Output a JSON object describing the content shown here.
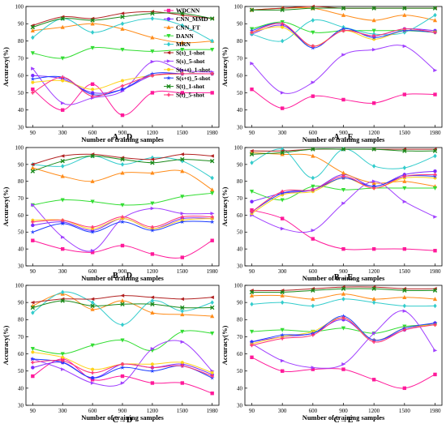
{
  "figure": {
    "x_values": [
      90,
      300,
      600,
      900,
      1200,
      1500,
      1980
    ],
    "series_meta": [
      {
        "name": "WDCNN",
        "color": "#ff1a9a",
        "marker": "square"
      },
      {
        "name": "CNN_MMD",
        "color": "#7b2cff",
        "marker": "circle"
      },
      {
        "name": "CNN_FT",
        "color": "#ff8c1a",
        "marker": "triangle"
      },
      {
        "name": "DANN",
        "color": "#33dd33",
        "marker": "tri-down"
      },
      {
        "name": "MRN",
        "color": "#33cccc",
        "marker": "diamond"
      },
      {
        "name": "S(s)_1-shot",
        "color": "#b22222",
        "marker": "tri-left"
      },
      {
        "name": "S(s)_5-shot",
        "color": "#a040ff",
        "marker": "tri-right"
      },
      {
        "name": "S(s+t)_1-shot",
        "color": "#ffd21a",
        "marker": "hex"
      },
      {
        "name": "S(s+t)_5-shot",
        "color": "#1a3bff",
        "marker": "star"
      },
      {
        "name": "S(t)_1-shot",
        "color": "#1a8a1a",
        "marker": "cross"
      },
      {
        "name": "S(t)_5-shot",
        "color": "#ff3377",
        "marker": "plus"
      }
    ]
  },
  "chart_data": [
    {
      "type": "line",
      "caption": "A→D",
      "xlabel": "Number of training samples",
      "ylabel": "Accuracy(%)",
      "ylim": [
        30,
        100
      ],
      "yticks": [
        30,
        40,
        50,
        60,
        70,
        80,
        90,
        100
      ],
      "show_legend": true,
      "x": [
        90,
        300,
        600,
        900,
        1200,
        1500,
        1980
      ],
      "series": [
        {
          "name": "WDCNN",
          "values": [
            52,
            40,
            55,
            37,
            50,
            50,
            50
          ]
        },
        {
          "name": "CNN_MMD",
          "values": [
            60,
            58,
            50,
            52,
            60,
            61,
            61
          ]
        },
        {
          "name": "CNN_FT",
          "values": [
            86,
            88,
            90,
            87,
            82,
            79,
            80
          ]
        },
        {
          "name": "DANN",
          "values": [
            73,
            70,
            76,
            75,
            74,
            75,
            75
          ]
        },
        {
          "name": "MRN",
          "values": [
            82,
            93,
            85,
            90,
            93,
            89,
            80
          ]
        },
        {
          "name": "S(s)_1-shot",
          "values": [
            89,
            94,
            93,
            96,
            97,
            95,
            93
          ]
        },
        {
          "name": "S(s)_5-shot",
          "values": [
            64,
            44,
            47,
            51,
            68,
            63,
            62
          ]
        },
        {
          "name": "S(s+t)_1-shot",
          "values": [
            56,
            57,
            52,
            57,
            60,
            61,
            61
          ]
        },
        {
          "name": "S(s+t)_5-shot",
          "values": [
            58,
            59,
            49,
            52,
            61,
            61,
            61
          ]
        },
        {
          "name": "S(t)_1-shot",
          "values": [
            88,
            93,
            92,
            94,
            96,
            96,
            93
          ]
        },
        {
          "name": "S(t)_5-shot",
          "values": [
            50,
            59,
            48,
            54,
            60,
            61,
            61
          ]
        }
      ]
    },
    {
      "type": "line",
      "caption": "A→E",
      "xlabel": "Number of training samples",
      "ylabel": "Accuracy(%)",
      "ylim": [
        30,
        100
      ],
      "yticks": [
        30,
        40,
        50,
        60,
        70,
        80,
        90,
        100
      ],
      "show_legend": false,
      "x": [
        90,
        300,
        600,
        900,
        1200,
        1500,
        1980
      ],
      "series": [
        {
          "name": "WDCNN",
          "values": [
            52,
            41,
            48,
            46,
            44,
            49,
            49
          ]
        },
        {
          "name": "CNN_MMD",
          "values": [
            84,
            89,
            77,
            86,
            83,
            87,
            86
          ]
        },
        {
          "name": "CNN_FT",
          "values": [
            98,
            99,
            99,
            95,
            92,
            95,
            92
          ]
        },
        {
          "name": "DANN",
          "values": [
            87,
            91,
            85,
            86,
            86,
            86,
            85
          ]
        },
        {
          "name": "MRN",
          "values": [
            84,
            80,
            92,
            88,
            84,
            85,
            95
          ]
        },
        {
          "name": "S(s)_1-shot",
          "values": [
            98,
            99,
            100,
            99,
            99,
            99,
            99
          ]
        },
        {
          "name": "S(s)_5-shot",
          "values": [
            67,
            50,
            56,
            72,
            75,
            77,
            63
          ]
        },
        {
          "name": "S(s+t)_1-shot",
          "values": [
            85,
            88,
            77,
            86,
            81,
            86,
            85
          ]
        },
        {
          "name": "S(s+t)_5-shot",
          "values": [
            86,
            90,
            76,
            87,
            82,
            86,
            85
          ]
        },
        {
          "name": "S(t)_1-shot",
          "values": [
            98,
            98,
            99,
            99,
            99,
            99,
            99
          ]
        },
        {
          "name": "S(t)_5-shot",
          "values": [
            85,
            90,
            77,
            86,
            83,
            87,
            85
          ]
        }
      ]
    },
    {
      "type": "line",
      "caption": "B→D",
      "xlabel": "Number of training samples",
      "ylabel": "Accuracy(%)",
      "ylim": [
        30,
        100
      ],
      "yticks": [
        30,
        40,
        50,
        60,
        70,
        80,
        90,
        100
      ],
      "show_legend": false,
      "x": [
        90,
        300,
        600,
        900,
        1200,
        1500,
        1980
      ],
      "series": [
        {
          "name": "WDCNN",
          "values": [
            45,
            40,
            38,
            42,
            37,
            35,
            45
          ]
        },
        {
          "name": "CNN_MMD",
          "values": [
            54,
            56,
            51,
            58,
            52,
            58,
            58
          ]
        },
        {
          "name": "CNN_FT",
          "values": [
            88,
            83,
            80,
            85,
            85,
            86,
            75
          ]
        },
        {
          "name": "DANN",
          "values": [
            66,
            69,
            68,
            66,
            67,
            71,
            73
          ]
        },
        {
          "name": "MRN",
          "values": [
            90,
            89,
            95,
            90,
            94,
            92,
            82
          ]
        },
        {
          "name": "S(s)_1-shot",
          "values": [
            90,
            95,
            96,
            94,
            93,
            96,
            95
          ]
        },
        {
          "name": "S(s)_5-shot",
          "values": [
            66,
            47,
            39,
            58,
            64,
            61,
            61
          ]
        },
        {
          "name": "S(s+t)_1-shot",
          "values": [
            57,
            57,
            52,
            58,
            52,
            57,
            58
          ]
        },
        {
          "name": "S(s+t)_5-shot",
          "values": [
            50,
            55,
            50,
            56,
            51,
            56,
            56
          ]
        },
        {
          "name": "S(t)_1-shot",
          "values": [
            86,
            92,
            95,
            93,
            91,
            93,
            92
          ]
        },
        {
          "name": "S(t)_5-shot",
          "values": [
            56,
            57,
            53,
            59,
            53,
            59,
            59
          ]
        }
      ]
    },
    {
      "type": "line",
      "caption": "B→E",
      "xlabel": "Number of training samples",
      "ylabel": "Accuracy(%)",
      "ylim": [
        30,
        100
      ],
      "yticks": [
        30,
        40,
        50,
        60,
        70,
        80,
        90,
        100
      ],
      "show_legend": false,
      "x": [
        90,
        300,
        600,
        900,
        1200,
        1500,
        1980
      ],
      "series": [
        {
          "name": "WDCNN",
          "values": [
            63,
            58,
            46,
            40,
            40,
            40,
            39
          ]
        },
        {
          "name": "CNN_MMD",
          "values": [
            68,
            73,
            75,
            84,
            77,
            84,
            86
          ]
        },
        {
          "name": "CNN_FT",
          "values": [
            97,
            96,
            95,
            85,
            79,
            80,
            77
          ]
        },
        {
          "name": "DANN",
          "values": [
            74,
            69,
            77,
            75,
            76,
            76,
            76
          ]
        },
        {
          "name": "MRN",
          "values": [
            91,
            99,
            82,
            99,
            89,
            88,
            95
          ]
        },
        {
          "name": "S(s)_1-shot",
          "values": [
            98,
            98,
            99,
            99,
            99,
            99,
            99
          ]
        },
        {
          "name": "S(s)_5-shot",
          "values": [
            60,
            52,
            51,
            67,
            80,
            68,
            59
          ]
        },
        {
          "name": "S(s+t)_1-shot",
          "values": [
            61,
            72,
            74,
            82,
            76,
            82,
            82
          ]
        },
        {
          "name": "S(s+t)_5-shot",
          "values": [
            62,
            73,
            75,
            82,
            77,
            83,
            83
          ]
        },
        {
          "name": "S(t)_1-shot",
          "values": [
            96,
            97,
            99,
            99,
            99,
            98,
            98
          ]
        },
        {
          "name": "S(t)_5-shot",
          "values": [
            62,
            74,
            75,
            83,
            76,
            83,
            84
          ]
        }
      ]
    },
    {
      "type": "line",
      "caption": "C→D",
      "xlabel": "Number of training samples",
      "ylabel": "Accuracy(%)",
      "ylim": [
        30,
        100
      ],
      "yticks": [
        30,
        40,
        50,
        60,
        70,
        80,
        90,
        100
      ],
      "show_legend": false,
      "x": [
        90,
        300,
        600,
        900,
        1200,
        1500,
        1980
      ],
      "series": [
        {
          "name": "WDCNN",
          "values": [
            47,
            57,
            45,
            47,
            43,
            43,
            37
          ]
        },
        {
          "name": "CNN_MMD",
          "values": [
            52,
            55,
            46,
            54,
            52,
            54,
            48
          ]
        },
        {
          "name": "CNN_FT",
          "values": [
            88,
            95,
            86,
            91,
            84,
            83,
            82
          ]
        },
        {
          "name": "DANN",
          "values": [
            63,
            60,
            65,
            68,
            62,
            73,
            72
          ]
        },
        {
          "name": "MRN",
          "values": [
            84,
            96,
            90,
            77,
            91,
            85,
            90
          ]
        },
        {
          "name": "S(s)_1-shot",
          "values": [
            90,
            92,
            92,
            94,
            93,
            92,
            93
          ]
        },
        {
          "name": "S(s)_5-shot",
          "values": [
            57,
            51,
            43,
            43,
            63,
            67,
            50
          ]
        },
        {
          "name": "S(s+t)_1-shot",
          "values": [
            61,
            58,
            51,
            54,
            54,
            55,
            49
          ]
        },
        {
          "name": "S(s+t)_5-shot",
          "values": [
            57,
            55,
            46,
            52,
            50,
            53,
            46
          ]
        },
        {
          "name": "S(t)_1-shot",
          "values": [
            87,
            91,
            88,
            89,
            89,
            87,
            87
          ]
        },
        {
          "name": "S(t)_5-shot",
          "values": [
            55,
            56,
            49,
            54,
            52,
            53,
            47
          ]
        }
      ]
    },
    {
      "type": "line",
      "caption": "C→E",
      "xlabel": "Number of training samples",
      "ylabel": "Accuracy(%)",
      "ylim": [
        30,
        100
      ],
      "yticks": [
        30,
        40,
        50,
        60,
        70,
        80,
        90,
        100
      ],
      "show_legend": false,
      "x": [
        90,
        300,
        600,
        900,
        1200,
        1500,
        1980
      ],
      "series": [
        {
          "name": "WDCNN",
          "values": [
            58,
            50,
            51,
            51,
            45,
            40,
            48
          ]
        },
        {
          "name": "CNN_MMD",
          "values": [
            67,
            70,
            72,
            80,
            68,
            74,
            78
          ]
        },
        {
          "name": "CNN_FT",
          "values": [
            94,
            94,
            92,
            95,
            92,
            93,
            92
          ]
        },
        {
          "name": "DANN",
          "values": [
            73,
            74,
            73,
            75,
            72,
            76,
            77
          ]
        },
        {
          "name": "MRN",
          "values": [
            89,
            90,
            88,
            92,
            90,
            88,
            88
          ]
        },
        {
          "name": "S(s)_1-shot",
          "values": [
            97,
            97,
            98,
            99,
            99,
            98,
            98
          ]
        },
        {
          "name": "S(s)_5-shot",
          "values": [
            66,
            56,
            52,
            54,
            72,
            85,
            62
          ]
        },
        {
          "name": "S(s+t)_1-shot",
          "values": [
            66,
            70,
            73,
            81,
            68,
            75,
            77
          ]
        },
        {
          "name": "S(s+t)_5-shot",
          "values": [
            67,
            71,
            72,
            82,
            68,
            75,
            78
          ]
        },
        {
          "name": "S(t)_1-shot",
          "values": [
            96,
            96,
            97,
            98,
            98,
            97,
            97
          ]
        },
        {
          "name": "S(t)_5-shot",
          "values": [
            65,
            69,
            71,
            81,
            67,
            74,
            77
          ]
        }
      ]
    }
  ]
}
